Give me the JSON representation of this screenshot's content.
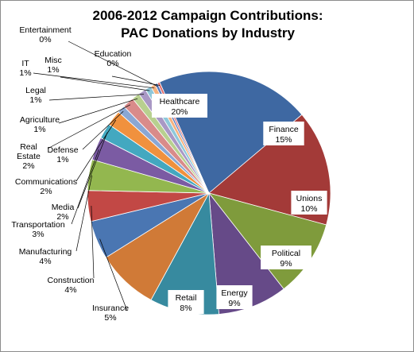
{
  "chart_data": {
    "type": "pie",
    "title": "2006-2012 Campaign Contributions:",
    "subtitle": "PAC Donations by Industry",
    "legend": "none",
    "slices": [
      {
        "name": "Healthcare",
        "value": 20,
        "label": "20%",
        "color": "#3e68a2"
      },
      {
        "name": "Finance",
        "value": 15,
        "label": "15%",
        "color": "#a33a38"
      },
      {
        "name": "Unions",
        "value": 10,
        "label": "10%",
        "color": "#7f9b3c"
      },
      {
        "name": "Political",
        "value": 9,
        "label": "9%",
        "color": "#664a88"
      },
      {
        "name": "Energy",
        "value": 9,
        "label": "9%",
        "color": "#378a9f"
      },
      {
        "name": "Retail",
        "value": 8,
        "label": "8%",
        "color": "#d07a37"
      },
      {
        "name": "Insurance",
        "value": 5,
        "label": "5%",
        "color": "#4a76b2"
      },
      {
        "name": "Construction",
        "value": 4,
        "label": "4%",
        "color": "#c24845"
      },
      {
        "name": "Manufacturing",
        "value": 4,
        "label": "4%",
        "color": "#93b74f"
      },
      {
        "name": "Transportation",
        "value": 3,
        "label": "3%",
        "color": "#7b5ba3"
      },
      {
        "name": "Media",
        "value": 2,
        "label": "2%",
        "color": "#43a8c0"
      },
      {
        "name": "Communications",
        "value": 2,
        "label": "2%",
        "color": "#f0913e"
      },
      {
        "name": "Defense",
        "value": 1,
        "label": "1%",
        "color": "#8aa7d4"
      },
      {
        "name": "Real Estate",
        "value": 1.5,
        "label": "2%",
        "color": "#d98b8a"
      },
      {
        "name": "Agriculture",
        "value": 1,
        "label": "1%",
        "color": "#b8d08f"
      },
      {
        "name": "Legal",
        "value": 1,
        "label": "1%",
        "color": "#a998c5"
      },
      {
        "name": "Misc",
        "value": 0.8,
        "label": "1%",
        "color": "#8fc8da"
      },
      {
        "name": "IT",
        "value": 0.6,
        "label": "1%",
        "color": "#f6b27f"
      },
      {
        "name": "Entertainment",
        "value": 0.35,
        "label": "0%",
        "color": "#5b7cc0"
      },
      {
        "name": "Education",
        "value": 0.3,
        "label": "0%",
        "color": "#e46c6a"
      }
    ]
  }
}
